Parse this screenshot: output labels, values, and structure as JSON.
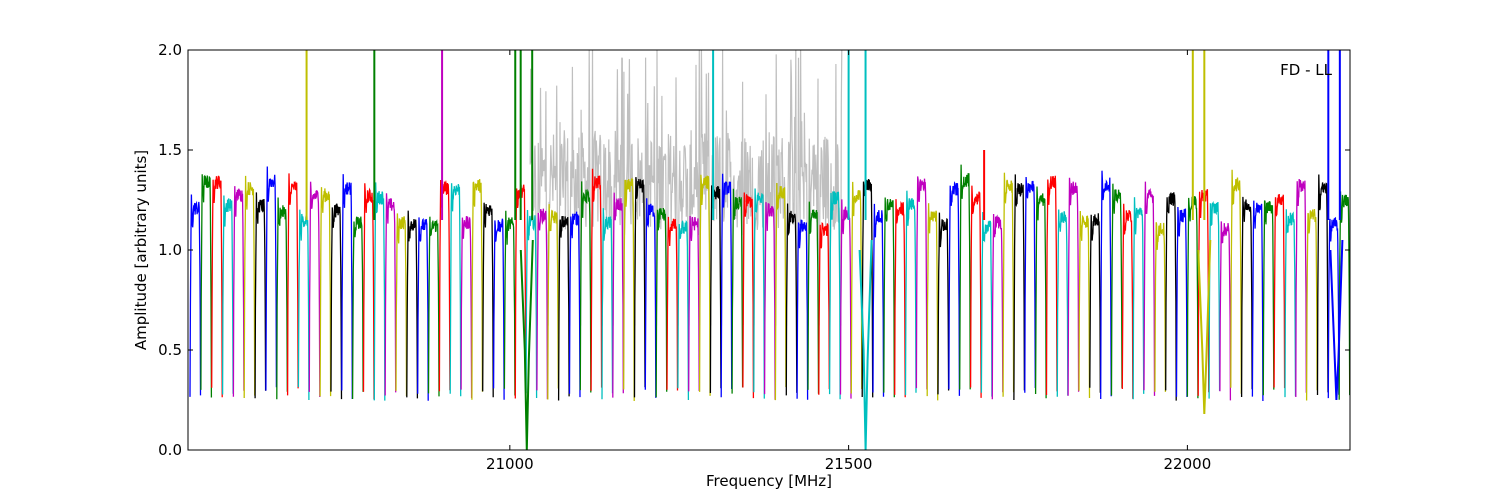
{
  "chart_data": {
    "type": "line",
    "title": "",
    "annotation": "FD - LL",
    "xlabel": "Frequency [MHz]",
    "ylabel": "Amplitude [arbitrary units]",
    "xlim": [
      20525,
      22240
    ],
    "ylim": [
      0.0,
      2.0
    ],
    "xticks": [
      21000,
      21500,
      22000
    ],
    "yticks": [
      0.0,
      0.5,
      1.0,
      1.5,
      2.0
    ],
    "xtick_labels": [
      "21000",
      "21500",
      "22000"
    ],
    "ytick_labels": [
      "0.0",
      "0.5",
      "1.0",
      "1.5",
      "2.0"
    ],
    "grid": false,
    "legend": "none",
    "background_series_color": "#bfbfbf",
    "band_colors": [
      "#0000ff",
      "#008000",
      "#ff0000",
      "#00bfbf",
      "#bf00bf",
      "#bfbf00",
      "#000000"
    ],
    "band_width_mhz": 16,
    "band_start_mhz": 20528,
    "spectra_note": "Spectra are densely sampled; each band is a bandpass-shaped segment with mean level near 1.2 and edges dropping to about 0.3.",
    "spikes": [
      {
        "x": 20700,
        "y": 2.0,
        "color": "#bfbf00"
      },
      {
        "x": 20800,
        "y": 2.0,
        "color": "#008000"
      },
      {
        "x": 20900,
        "y": 2.0,
        "color": "#bf00bf"
      },
      {
        "x": 21008,
        "y": 2.0,
        "color": "#008000"
      },
      {
        "x": 21016,
        "y": 2.0,
        "color": "#008000"
      },
      {
        "x": 21033,
        "y": 2.0,
        "color": "#008000"
      },
      {
        "x": 21300,
        "y": 2.0,
        "color": "#00bfbf"
      },
      {
        "x": 21500,
        "y": 2.0,
        "color": "#00bfbf"
      },
      {
        "x": 21525,
        "y": 2.0,
        "color": "#00bfbf"
      },
      {
        "x": 21700,
        "y": 1.5,
        "color": "#ff0000"
      },
      {
        "x": 22008,
        "y": 2.0,
        "color": "#bfbf00"
      },
      {
        "x": 22025,
        "y": 2.0,
        "color": "#bfbf00"
      },
      {
        "x": 22208,
        "y": 2.0,
        "color": "#0000ff"
      },
      {
        "x": 22225,
        "y": 2.0,
        "color": "#0000ff"
      }
    ],
    "dips": [
      {
        "x": 21025,
        "y": 0.0,
        "color": "#008000"
      },
      {
        "x": 21525,
        "y": 0.0,
        "color": "#00bfbf"
      },
      {
        "x": 22025,
        "y": 0.18,
        "color": "#bfbf00"
      },
      {
        "x": 22220,
        "y": 0.25,
        "color": "#0000ff"
      }
    ]
  }
}
